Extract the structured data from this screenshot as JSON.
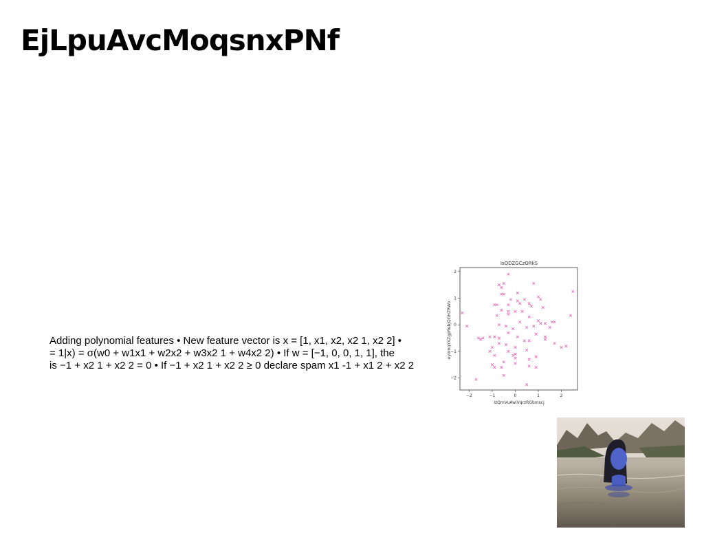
{
  "slide": {
    "title": "EjLpuAvcMoqsnxPNf",
    "body_lines": [
      "Adding polynomial features • New feature vector is x = [1, x1, x2, x2 1, x2 2] •",
      "= 1|x) = σ(w0 + w1x1 + w2x2 + w3x2 1 + w4x2 2) • If w = [−1, 0, 0, 1, 1], the",
      "is −1 + x2 1 + x2 2 = 0 • If −1 + x2 1 + x2 2 ≥ 0 declare spam x1 -1 + x1 2 + x2 2"
    ]
  },
  "photo": {
    "icon": "woman-in-infinity-pool-photo"
  },
  "chart_data": {
    "type": "scatter",
    "title": "IsQDZGCzORkS",
    "xlabel": "IzQmVuAwiVqrzRGbmscj",
    "ylabel": "eyomqYXZgpRebJQGHZRWo",
    "xlim": [
      -2.4,
      2.7
    ],
    "ylim": [
      -2.45,
      2.15
    ],
    "xticks": [
      -2,
      -1,
      0,
      1,
      2
    ],
    "yticks": [
      -2,
      -1,
      0,
      1,
      2
    ],
    "marker_color": "#e75fb0",
    "marker": "x",
    "grid": false,
    "points": [
      [
        -0.3,
        1.9
      ],
      [
        0.8,
        1.55
      ],
      [
        -0.7,
        1.5
      ],
      [
        -0.6,
        1.4
      ],
      [
        -0.5,
        1.55
      ],
      [
        0.1,
        1.2
      ],
      [
        -0.6,
        1.15
      ],
      [
        -0.5,
        1.15
      ],
      [
        2.5,
        1.25
      ],
      [
        1.0,
        1.05
      ],
      [
        1.1,
        0.95
      ],
      [
        -0.2,
        0.95
      ],
      [
        0.1,
        0.9
      ],
      [
        0.4,
        0.95
      ],
      [
        0.6,
        0.8
      ],
      [
        -0.9,
        0.75
      ],
      [
        -0.8,
        0.75
      ],
      [
        -0.3,
        0.75
      ],
      [
        0.2,
        0.8
      ],
      [
        0.7,
        0.7
      ],
      [
        1.2,
        0.65
      ],
      [
        -0.6,
        0.55
      ],
      [
        -0.3,
        0.5
      ],
      [
        0.0,
        0.5
      ],
      [
        0.3,
        0.5
      ],
      [
        -2.3,
        0.45
      ],
      [
        -0.3,
        0.4
      ],
      [
        -0.8,
        0.35
      ],
      [
        0.6,
        0.3
      ],
      [
        2.4,
        0.35
      ],
      [
        1.0,
        0.15
      ],
      [
        0.2,
        0.1
      ],
      [
        1.1,
        0.05
      ],
      [
        1.6,
        0.1
      ],
      [
        1.7,
        0.1
      ],
      [
        0.8,
        -0.05
      ],
      [
        -0.7,
        0.0
      ],
      [
        1.3,
        0.05
      ],
      [
        -2.1,
        -0.05
      ],
      [
        -0.4,
        -0.05
      ],
      [
        0.5,
        -0.1
      ],
      [
        1.5,
        -0.1
      ],
      [
        -0.1,
        -0.15
      ],
      [
        -0.3,
        -0.3
      ],
      [
        0.9,
        -0.35
      ],
      [
        -1.1,
        -0.45
      ],
      [
        -0.9,
        -0.45
      ],
      [
        -1.6,
        -0.5
      ],
      [
        -0.7,
        -0.5
      ],
      [
        0.1,
        -0.45
      ],
      [
        1.3,
        -0.45
      ],
      [
        -1.5,
        -0.55
      ],
      [
        -1.4,
        -0.5
      ],
      [
        0.4,
        -0.6
      ],
      [
        0.6,
        -0.6
      ],
      [
        -0.7,
        -0.7
      ],
      [
        1.3,
        -0.55
      ],
      [
        -0.4,
        -0.75
      ],
      [
        2.2,
        -0.8
      ],
      [
        -1.0,
        -0.85
      ],
      [
        0.0,
        -0.85
      ],
      [
        2.0,
        -0.85
      ],
      [
        -0.3,
        -1.0
      ],
      [
        0.5,
        -0.95
      ],
      [
        1.7,
        -0.7
      ],
      [
        -1.1,
        -1.0
      ],
      [
        0.0,
        -1.1
      ],
      [
        -0.1,
        -1.15
      ],
      [
        -0.9,
        -1.15
      ],
      [
        0.9,
        -1.2
      ],
      [
        0.0,
        -1.25
      ],
      [
        0.6,
        -1.3
      ],
      [
        -1.0,
        -1.5
      ],
      [
        -0.5,
        -1.4
      ],
      [
        -0.9,
        -1.6
      ],
      [
        0.0,
        -1.45
      ],
      [
        0.6,
        -1.55
      ],
      [
        0.9,
        -1.6
      ],
      [
        -0.5,
        -1.9
      ],
      [
        -1.7,
        -2.05
      ],
      [
        0.5,
        -2.25
      ],
      [
        -0.6,
        -1.6
      ]
    ]
  }
}
